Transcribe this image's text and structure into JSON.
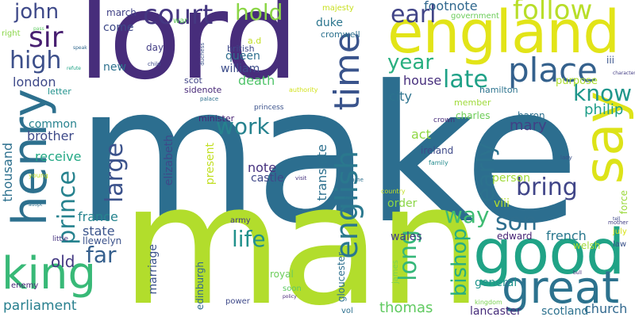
{
  "words": [
    {
      "text": "make",
      "color": "#2c6e8f"
    },
    {
      "text": "man",
      "color": "#b2dd2c"
    },
    {
      "text": "lord",
      "color": "#472d7b"
    },
    {
      "text": "england",
      "color": "#e2e418"
    },
    {
      "text": "good",
      "color": "#20a386"
    },
    {
      "text": "say",
      "color": "#dde318"
    },
    {
      "text": "henry",
      "color": "#2d708e"
    },
    {
      "text": "king",
      "color": "#38b977"
    },
    {
      "text": "great",
      "color": "#2c728e"
    },
    {
      "text": "place",
      "color": "#34618d"
    },
    {
      "text": "time",
      "color": "#3a548c"
    },
    {
      "text": "court",
      "color": "#453781"
    },
    {
      "text": "english",
      "color": "#2a788e"
    },
    {
      "text": "sir",
      "color": "#481f71"
    },
    {
      "text": "high",
      "color": "#3c4f8a"
    },
    {
      "text": "earl",
      "color": "#414487"
    },
    {
      "text": "follow",
      "color": "#b8de29"
    },
    {
      "text": "hold",
      "color": "#8bd646"
    },
    {
      "text": "john",
      "color": "#3e4989"
    },
    {
      "text": "prince",
      "color": "#26828e"
    },
    {
      "text": "large",
      "color": "#3b528b"
    },
    {
      "text": "know",
      "color": "#1f968b"
    },
    {
      "text": "late",
      "color": "#1fa187"
    },
    {
      "text": "year",
      "color": "#29af7f"
    },
    {
      "text": "son",
      "color": "#2e6e8e"
    },
    {
      "text": "bring",
      "color": "#404588"
    },
    {
      "text": "early",
      "color": "#2c728e"
    },
    {
      "text": "long",
      "color": "#35b779"
    },
    {
      "text": "way",
      "color": "#3fbc73"
    },
    {
      "text": "work",
      "color": "#26828e"
    },
    {
      "text": "life",
      "color": "#21918c"
    },
    {
      "text": "far",
      "color": "#355f8d"
    },
    {
      "text": "bishop",
      "color": "#27ad81"
    },
    {
      "text": "parliament",
      "color": "#277f8e"
    },
    {
      "text": "old",
      "color": "#443983"
    },
    {
      "text": "thousand",
      "color": "#2d708e"
    },
    {
      "text": "church",
      "color": "#31688e"
    },
    {
      "text": "thomas",
      "color": "#60ca60"
    },
    {
      "text": "mary",
      "color": "#424086"
    },
    {
      "text": "philip",
      "color": "#1f9e89"
    },
    {
      "text": "footnote",
      "color": "#31688e"
    },
    {
      "text": "death",
      "color": "#50c46a"
    },
    {
      "text": "william",
      "color": "#3d4d8a"
    },
    {
      "text": "queen",
      "color": "#2e6f8e"
    },
    {
      "text": "city",
      "color": "#2c738e"
    },
    {
      "text": "house",
      "color": "#472f7d"
    },
    {
      "text": "french",
      "color": "#2a788e"
    },
    {
      "text": "state",
      "color": "#3a548c"
    },
    {
      "text": "france",
      "color": "#25848e"
    },
    {
      "text": "brother",
      "color": "#3e4a89"
    },
    {
      "text": "common",
      "color": "#26828e"
    },
    {
      "text": "london",
      "color": "#3e4989"
    },
    {
      "text": "receive",
      "color": "#22a884"
    },
    {
      "text": "note",
      "color": "#46317e"
    },
    {
      "text": "castle",
      "color": "#3f4889"
    },
    {
      "text": "duke",
      "color": "#2b758e"
    },
    {
      "text": "general",
      "color": "#1f948c"
    },
    {
      "text": "lancaster",
      "color": "#472d7b"
    },
    {
      "text": "scotland",
      "color": "#2c718e"
    },
    {
      "text": "order",
      "color": "#8bd646"
    },
    {
      "text": "wales",
      "color": "#433e85"
    },
    {
      "text": "edward",
      "color": "#482475"
    },
    {
      "text": "person",
      "color": "#a0da39"
    },
    {
      "text": "act",
      "color": "#8fd744"
    },
    {
      "text": "translate",
      "color": "#2d708e"
    },
    {
      "text": "elizabeth",
      "color": "#3e4989"
    },
    {
      "text": "marriage",
      "color": "#3b528b"
    },
    {
      "text": "edinburgh",
      "color": "#31688e"
    },
    {
      "text": "present",
      "color": "#c2df23"
    },
    {
      "text": "gloucester",
      "color": "#2d708e"
    },
    {
      "text": "royal",
      "color": "#6ccd5a"
    },
    {
      "text": "new",
      "color": "#2d708e"
    },
    {
      "text": "come",
      "color": "#3e4a89"
    },
    {
      "text": "march",
      "color": "#414287"
    },
    {
      "text": "day",
      "color": "#433e85"
    },
    {
      "text": "british",
      "color": "#3e4989"
    },
    {
      "text": "cromwell",
      "color": "#2c718e"
    },
    {
      "text": "purpose",
      "color": "#addc30"
    },
    {
      "text": "iii",
      "color": "#3a548c"
    },
    {
      "text": "member",
      "color": "#9fda3a"
    },
    {
      "text": "charles",
      "color": "#6ece58"
    },
    {
      "text": "baron",
      "color": "#2d708e"
    },
    {
      "text": "ireland",
      "color": "#3e4989"
    },
    {
      "text": "viii",
      "color": "#b5de2b"
    },
    {
      "text": "welsh",
      "color": "#a2da37"
    },
    {
      "text": "force",
      "color": "#9bd93c"
    },
    {
      "text": "llewelyn",
      "color": "#3b528b"
    },
    {
      "text": "letter",
      "color": "#20928c"
    },
    {
      "text": "sidenote",
      "color": "#482878"
    },
    {
      "text": "scot",
      "color": "#414487"
    },
    {
      "text": "minister",
      "color": "#482475"
    },
    {
      "text": "army",
      "color": "#433e85"
    },
    {
      "text": "hamilton",
      "color": "#2c738e"
    },
    {
      "text": "government",
      "color": "#6ccd5a"
    },
    {
      "text": "majesty",
      "color": "#c8e020"
    },
    {
      "text": "war",
      "color": "#65cb5e"
    },
    {
      "text": "right",
      "color": "#89d548"
    },
    {
      "text": "a.d",
      "color": "#c2df23"
    },
    {
      "text": "crown",
      "color": "#472d7b"
    },
    {
      "text": "princess",
      "color": "#3b528b"
    },
    {
      "text": "authority",
      "color": "#d2e21b"
    },
    {
      "text": "james",
      "color": "#7ad151"
    },
    {
      "text": "soon",
      "color": "#5ec962"
    },
    {
      "text": "power",
      "color": "#3e4989"
    },
    {
      "text": "vol",
      "color": "#2d708e"
    },
    {
      "text": "little",
      "color": "#46337f"
    },
    {
      "text": "enemy",
      "color": "#482878"
    },
    {
      "text": "law",
      "color": "#3b528b"
    },
    {
      "text": "july",
      "color": "#d8e219"
    },
    {
      "text": "kingdom",
      "color": "#7ad151"
    },
    {
      "text": "family",
      "color": "#238a8d"
    },
    {
      "text": "country",
      "color": "#c0df25"
    },
    {
      "text": "young",
      "color": "#c2df23"
    },
    {
      "text": "palace",
      "color": "#2d708e"
    },
    {
      "text": "child",
      "color": "#3e4989"
    },
    {
      "text": "duchess",
      "color": "#3b528b"
    },
    {
      "text": "visit",
      "color": "#46337f"
    },
    {
      "text": "lady",
      "color": "#3b528b"
    },
    {
      "text": "mother",
      "color": "#433e85"
    },
    {
      "text": "fame",
      "color": "#2d708e"
    },
    {
      "text": "speak",
      "color": "#31688e"
    },
    {
      "text": "refute",
      "color": "#20a386"
    },
    {
      "text": "character",
      "color": "#433e85"
    },
    {
      "text": "pass",
      "color": "#5ec962"
    },
    {
      "text": "bull",
      "color": "#472d7b"
    },
    {
      "text": "policy",
      "color": "#482878"
    },
    {
      "text": "refer",
      "color": "#2d708e"
    },
    {
      "text": "adopt",
      "color": "#2d708e"
    },
    {
      "text": "tell",
      "color": "#3e4989"
    }
  ]
}
